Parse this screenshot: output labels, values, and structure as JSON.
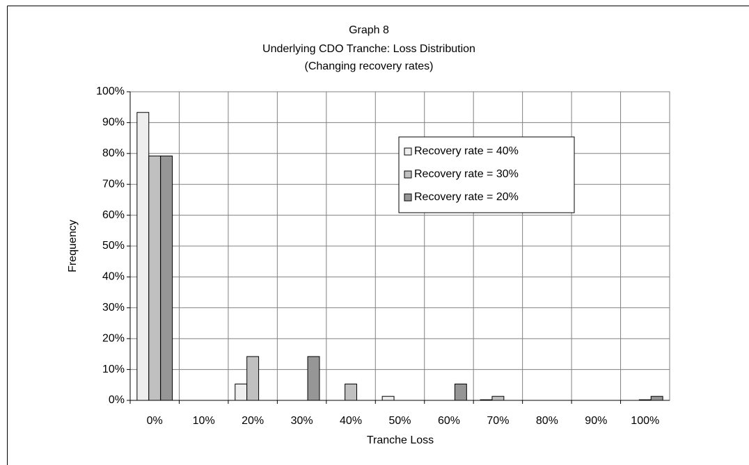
{
  "chart_data": {
    "type": "bar",
    "title": [
      "Graph 8",
      "Underlying CDO Tranche: Loss Distribution",
      "(Changing recovery rates)"
    ],
    "x_label": "Tranche Loss",
    "y_label": "Frequency",
    "categories": [
      "0%",
      "10%",
      "20%",
      "30%",
      "40%",
      "50%",
      "60%",
      "70%",
      "80%",
      "90%",
      "100%"
    ],
    "series": [
      {
        "name": "Recovery rate = 40%",
        "color": "#eeeeee",
        "values": [
          93.3,
          0,
          5.3,
          0,
          0,
          1.3,
          0,
          0.2,
          0,
          0,
          0
        ]
      },
      {
        "name": "Recovery rate = 30%",
        "color": "#c0c0c0",
        "values": [
          79.2,
          0,
          14.2,
          0,
          5.3,
          0,
          0,
          1.3,
          0,
          0,
          0.2
        ]
      },
      {
        "name": "Recovery rate = 20%",
        "color": "#969696",
        "values": [
          79.2,
          0,
          0,
          14.2,
          0,
          0,
          5.3,
          0,
          0,
          0,
          1.3
        ]
      }
    ],
    "ylim": [
      0,
      100
    ],
    "yticks": [
      {
        "value": 0,
        "label": "0%"
      },
      {
        "value": 10,
        "label": "10%"
      },
      {
        "value": 20,
        "label": "20%"
      },
      {
        "value": 30,
        "label": "30%"
      },
      {
        "value": 40,
        "label": "40%"
      },
      {
        "value": 50,
        "label": "50%"
      },
      {
        "value": 60,
        "label": "60%"
      },
      {
        "value": 70,
        "label": "70%"
      },
      {
        "value": 80,
        "label": "80%"
      },
      {
        "value": 90,
        "label": "90%"
      },
      {
        "value": 100,
        "label": "100%"
      }
    ],
    "grid": true,
    "legend": "upper right"
  }
}
